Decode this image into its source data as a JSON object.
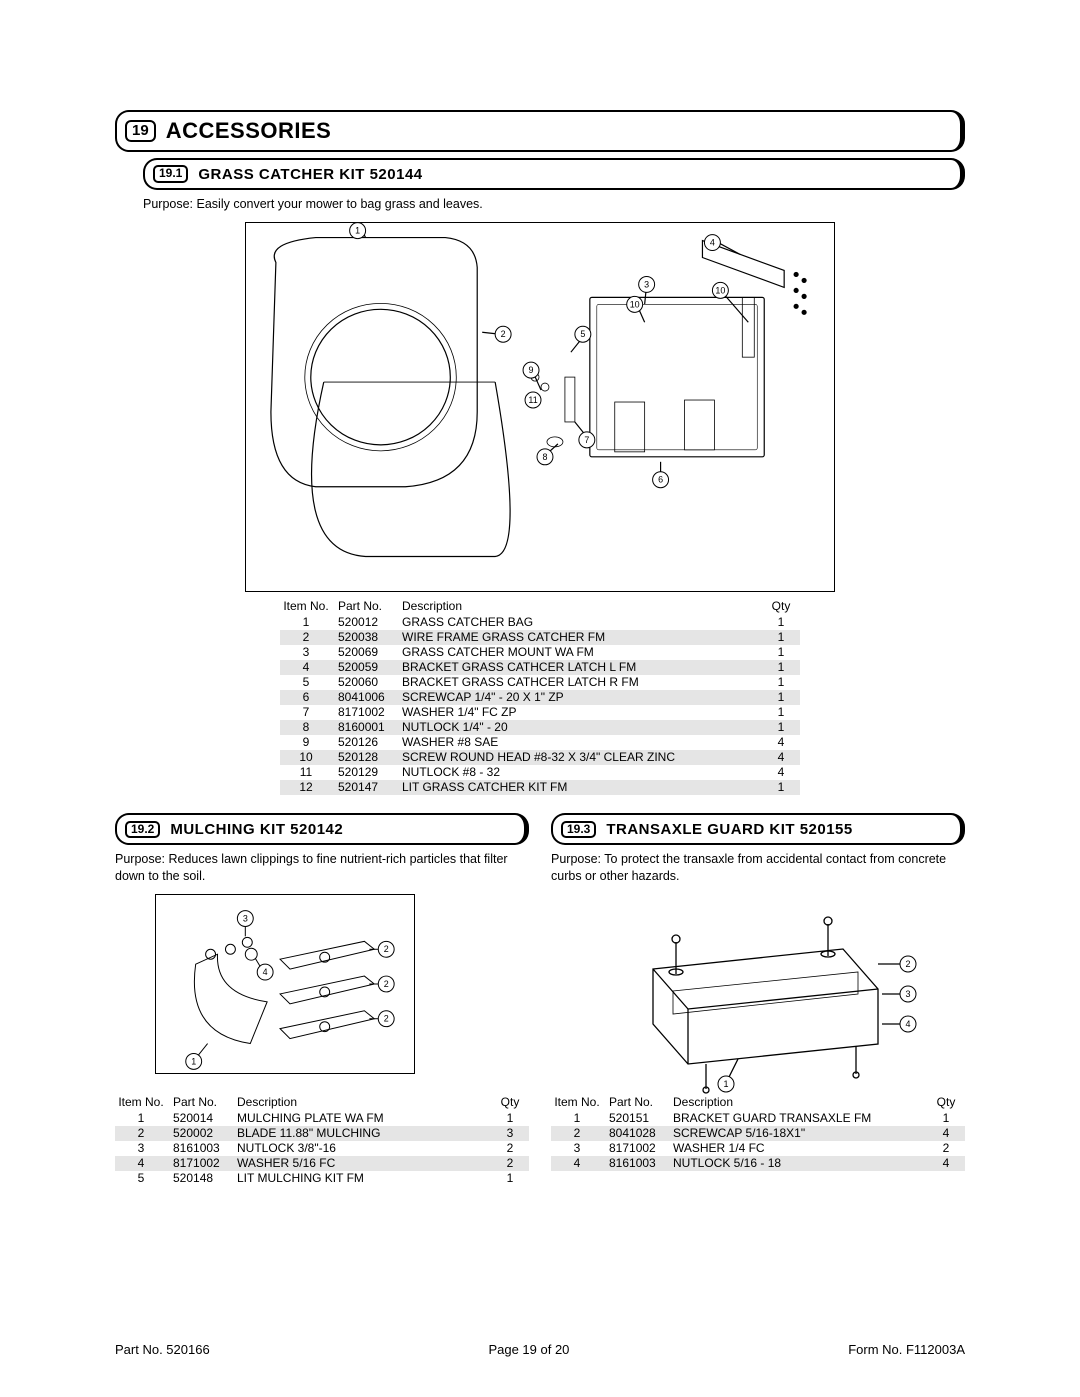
{
  "main_section": {
    "number": "19",
    "title": "ACCESSORIES"
  },
  "sec1": {
    "number": "19.1",
    "title": "GRASS CATCHER KIT  520144",
    "purpose": "Purpose: Easily convert your mower to bag grass and leaves.",
    "table": {
      "headers": [
        "Item No.",
        "Part No.",
        "Description",
        "Qty"
      ],
      "rows": [
        [
          "1",
          "520012",
          "GRASS CATCHER BAG",
          "1"
        ],
        [
          "2",
          "520038",
          "WIRE FRAME GRASS CATCHER FM",
          "1"
        ],
        [
          "3",
          "520069",
          "GRASS CATCHER MOUNT WA FM",
          "1"
        ],
        [
          "4",
          "520059",
          "BRACKET GRASS CATHCER LATCH L FM",
          "1"
        ],
        [
          "5",
          "520060",
          "BRACKET GRASS CATHCER LATCH R FM",
          "1"
        ],
        [
          "6",
          "8041006",
          "SCREWCAP 1/4\" - 20 X 1\" ZP",
          "1"
        ],
        [
          "7",
          "8171002",
          "WASHER 1/4\" FC ZP",
          "1"
        ],
        [
          "8",
          "8160001",
          "NUTLOCK 1/4\" - 20",
          "1"
        ],
        [
          "9",
          "520126",
          "WASHER #8 SAE",
          "4"
        ],
        [
          "10",
          "520128",
          "SCREW ROUND HEAD #8-32 X 3/4\" CLEAR ZINC",
          "4"
        ],
        [
          "11",
          "520129",
          "NUTLOCK #8 - 32",
          "4"
        ],
        [
          "12",
          "520147",
          "LIT GRASS CATCHER KIT FM",
          "1"
        ]
      ]
    }
  },
  "sec2": {
    "number": "19.2",
    "title": "MULCHING KIT  520142",
    "purpose": "Purpose: Reduces lawn clippings to fine nutrient-rich particles that filter down to the soil.",
    "table": {
      "headers": [
        "Item No.",
        "Part No.",
        "Description",
        "Qty"
      ],
      "rows": [
        [
          "1",
          "520014",
          "MULCHING PLATE WA FM",
          "1"
        ],
        [
          "2",
          "520002",
          "BLADE 11.88\" MULCHING",
          "3"
        ],
        [
          "3",
          "8161003",
          "NUTLOCK 3/8\"-16",
          "2"
        ],
        [
          "4",
          "8171002",
          "WASHER 5/16 FC",
          "2"
        ],
        [
          "5",
          "520148",
          "LIT MULCHING KIT FM",
          "1"
        ]
      ]
    }
  },
  "sec3": {
    "number": "19.3",
    "title": "TRANSAXLE GUARD KIT  520155",
    "purpose": "Purpose: To protect the transaxle from accidental contact from concrete curbs or other hazards.",
    "table": {
      "headers": [
        "Item No.",
        "Part No.",
        "Description",
        "Qty"
      ],
      "rows": [
        [
          "1",
          "520151",
          "BRACKET GUARD TRANSAXLE FM",
          "1"
        ],
        [
          "2",
          "8041028",
          "SCREWCAP 5/16-18X1\"",
          "4"
        ],
        [
          "3",
          "8171002",
          "WASHER 1/4 FC",
          "2"
        ],
        [
          "4",
          "8161003",
          "NUTLOCK 5/16 - 18",
          "4"
        ]
      ]
    }
  },
  "footer": {
    "left": "Part No. 520166",
    "center": "Page 19 of 20",
    "right": "Form No. F112003A"
  },
  "callouts1": [
    "1",
    "2",
    "3",
    "4",
    "5",
    "6",
    "7",
    "8",
    "9",
    "10",
    "10",
    "11"
  ],
  "callouts2": [
    "1",
    "2",
    "2",
    "2",
    "3",
    "4"
  ],
  "callouts3": [
    "1",
    "2",
    "3",
    "4"
  ],
  "style": {
    "shade_color": "#e5e5e5",
    "border_color": "#000000",
    "bg_color": "#ffffff"
  }
}
